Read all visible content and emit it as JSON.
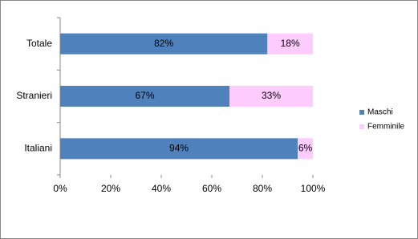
{
  "chart_data": {
    "type": "stacked-bar-horizontal",
    "categories": [
      "Totale",
      "Stranieri",
      "Italiani"
    ],
    "series": [
      {
        "name": "Maschi",
        "color": "#4f81bd",
        "values": [
          82,
          67,
          94
        ],
        "value_labels": [
          "82%",
          "67%",
          "94%"
        ]
      },
      {
        "name": "Femminile",
        "color": "#ffccff",
        "values": [
          18,
          33,
          6
        ],
        "value_labels": [
          "18%",
          "33%",
          "6%"
        ]
      }
    ],
    "xlim": [
      0,
      100
    ],
    "xticks": [
      {
        "value": 0,
        "label": "0%"
      },
      {
        "value": 20,
        "label": "20%"
      },
      {
        "value": 40,
        "label": "40%"
      },
      {
        "value": 60,
        "label": "60%"
      },
      {
        "value": 80,
        "label": "80%"
      },
      {
        "value": 100,
        "label": "100%"
      }
    ],
    "legend": "right"
  }
}
